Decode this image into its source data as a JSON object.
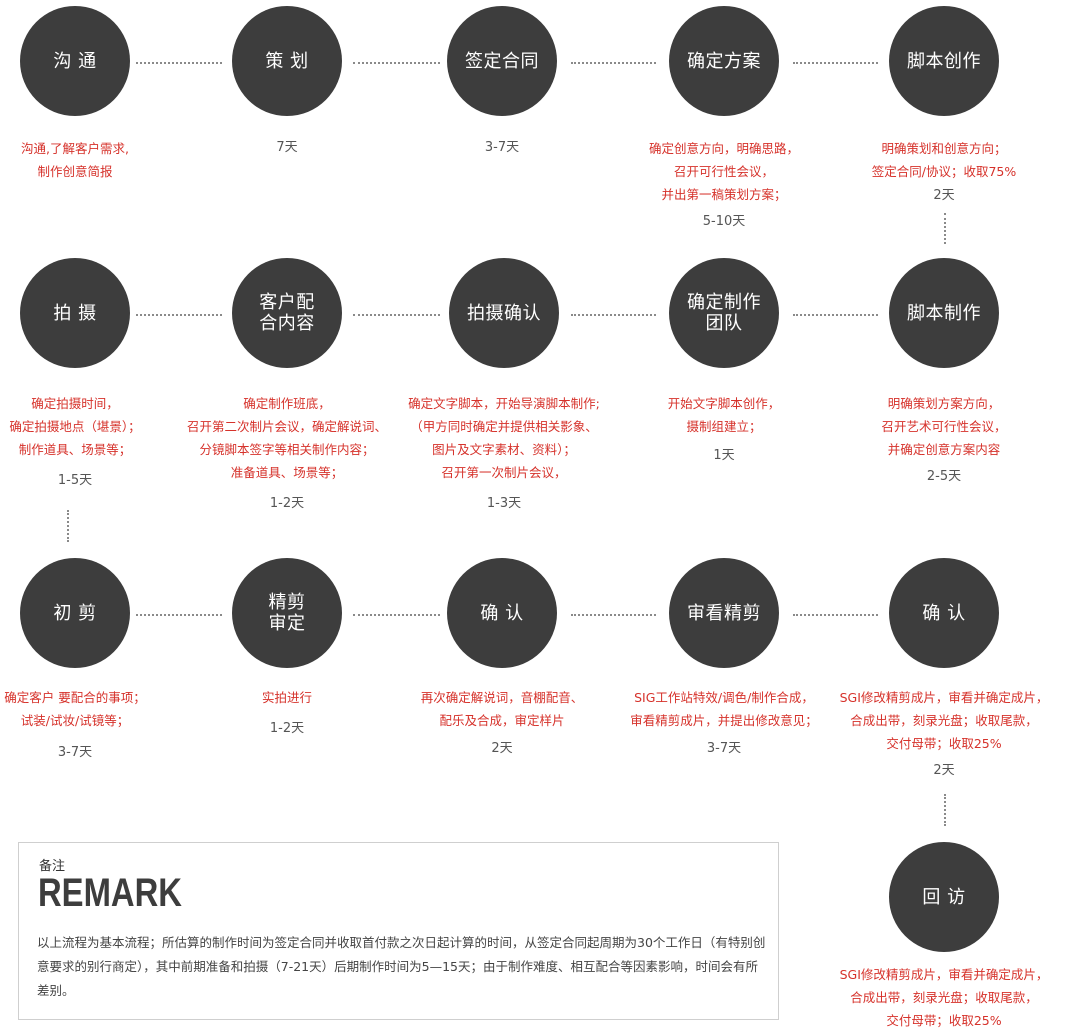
{
  "steps": [
    {
      "label": "沟 通",
      "desc": "沟通,了解客户需求,\n制作创意简报",
      "duration": ""
    },
    {
      "label": "策 划",
      "desc": "",
      "duration": "7天"
    },
    {
      "label": "签定合同",
      "desc": "",
      "duration": "3-7天"
    },
    {
      "label": "确定方案",
      "desc": "确定创意方向，明确思路，\n召开可行性会议，\n并出第一稿策划方案；",
      "duration": "5-10天"
    },
    {
      "label": "脚本创作",
      "desc": "明确策划和创意方向；\n签定合同/协议；收取75%",
      "duration": "2天"
    },
    {
      "label": "脚本制作",
      "desc": "明确策划方案方向，\n召开艺术可行性会议，\n并确定创意方案内容",
      "duration": "2-5天"
    },
    {
      "label": "确定制作\n团队",
      "desc": "开始文字脚本创作，\n摄制组建立；",
      "duration": "1天"
    },
    {
      "label": "拍摄确认",
      "desc": "确定文字脚本，开始导演脚本制作;\n（甲方同时确定并提供相关影象、\n图片及文字素材、资料）；\n召开第一次制片会议，",
      "duration": "1-3天"
    },
    {
      "label": "客户配\n合内容",
      "desc": "确定制作班底，\n召开第二次制片会议，确定解说词、\n分镜脚本签字等相关制作内容；\n准备道具、场景等；",
      "duration": "1-2天"
    },
    {
      "label": "拍 摄",
      "desc": "确定拍摄时间，\n确定拍摄地点（堪景）；\n制作道具、场景等；",
      "duration": "1-5天"
    },
    {
      "label": "初 剪",
      "desc": "确定客户 要配合的事项；\n试装/试妆/试镜等；",
      "duration": "3-7天"
    },
    {
      "label": "精剪\n审定",
      "desc": "实拍进行",
      "duration": "1-2天"
    },
    {
      "label": "确 认",
      "desc": "再次确定解说词，音棚配音、\n配乐及合成，审定样片",
      "duration": "2天"
    },
    {
      "label": "审看精剪",
      "desc": "SIG工作站特效/调色/制作合成，\n审看精剪成片，并提出修改意见；",
      "duration": "3-7天"
    },
    {
      "label": "确 认",
      "desc": "SGI修改精剪成片，审看并确定成片，\n合成出带，刻录光盘；收取尾款，\n交付母带；收取25%",
      "duration": "2天"
    },
    {
      "label": "回 访",
      "desc": "SGI修改精剪成片，审看并确定成片，\n合成出带，刻录光盘；收取尾款，\n交付母带；收取25%",
      "duration": ""
    }
  ],
  "remark": {
    "label": "备注",
    "title": "REMARK",
    "text": "以上流程为基本流程；所估算的制作时间为签定合同并收取首付款之次日起计算的时间，从签定合同起周期为30个工作日（有特别创意要求的别行商定），其中前期准备和拍摄（7-21天）后期制作时间为5—15天；由于制作难度、相互配合等因素影响，时间会有所差别。"
  },
  "colors": {
    "node_fill": "#3d3d3d",
    "node_text": "#ffffff",
    "description_text": "#d6322b",
    "duration_text": "#555555",
    "connector": "#8a8a8a"
  }
}
